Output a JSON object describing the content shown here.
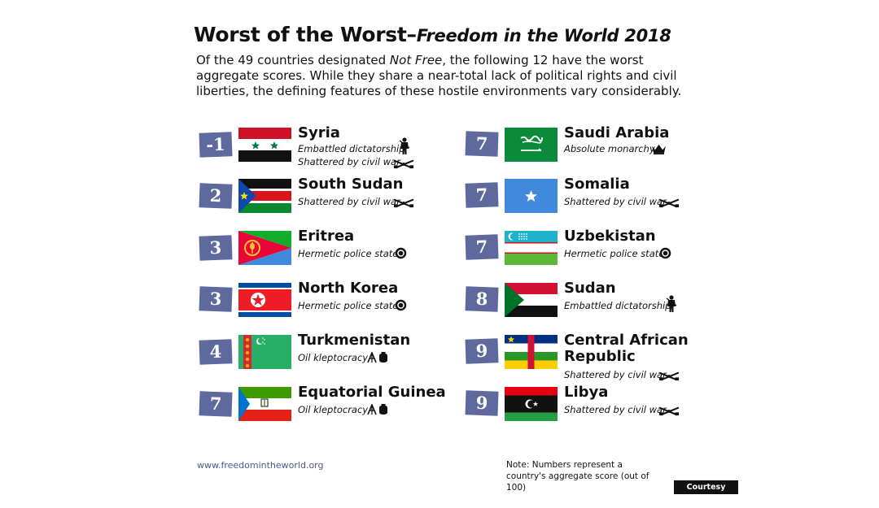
{
  "title": "Worst of the Worst",
  "title_dash": "–",
  "subtitle": "Freedom in the World 2018",
  "intro": {
    "p1": "Of the 49 countries designated ",
    "emph": "Not Free",
    "p2": ", the following 12 have the worst aggregate scores. While they share a near-total lack of political rights and civil liberties, the defining features of these hostile environments vary considerably."
  },
  "countries": [
    {
      "score": "-1",
      "name": "Syria",
      "descs": [
        "Embattled dictatorship",
        "Shattered by civil war"
      ],
      "icons": [
        "soldier-icon",
        "crossed-rifles-icon"
      ],
      "flag": "syria-flag-icon"
    },
    {
      "score": "2",
      "name": "South Sudan",
      "descs": [
        "Shattered by civil war"
      ],
      "icons": [
        "crossed-rifles-icon"
      ],
      "flag": "south-sudan-flag-icon"
    },
    {
      "score": "3",
      "name": "Eritrea",
      "descs": [
        "Hermetic police state"
      ],
      "icons": [
        "surveillance-eye-icon"
      ],
      "flag": "eritrea-flag-icon"
    },
    {
      "score": "3",
      "name": "North Korea",
      "descs": [
        "Hermetic police state"
      ],
      "icons": [
        "surveillance-eye-icon"
      ],
      "flag": "north-korea-flag-icon"
    },
    {
      "score": "4",
      "name": "Turkmenistan",
      "descs": [
        "Oil kleptocracy"
      ],
      "icons": [
        "oil-derrick-money-icon"
      ],
      "flag": "turkmenistan-flag-icon"
    },
    {
      "score": "7",
      "name": "Equatorial Guinea",
      "descs": [
        "Oil kleptocracy"
      ],
      "icons": [
        "oil-derrick-money-icon"
      ],
      "flag": "equatorial-guinea-flag-icon"
    },
    {
      "score": "7",
      "name": "Saudi Arabia",
      "descs": [
        "Absolute monarchy"
      ],
      "icons": [
        "crown-icon"
      ],
      "flag": "saudi-arabia-flag-icon"
    },
    {
      "score": "7",
      "name": "Somalia",
      "descs": [
        "Shattered by civil war"
      ],
      "icons": [
        "crossed-rifles-icon"
      ],
      "flag": "somalia-flag-icon"
    },
    {
      "score": "7",
      "name": "Uzbekistan",
      "descs": [
        "Hermetic police state"
      ],
      "icons": [
        "surveillance-eye-icon"
      ],
      "flag": "uzbekistan-flag-icon"
    },
    {
      "score": "8",
      "name": "Sudan",
      "descs": [
        "Embattled dictatorship"
      ],
      "icons": [
        "soldier-icon"
      ],
      "flag": "sudan-flag-icon"
    },
    {
      "score": "9",
      "name": "Central African Republic",
      "name_line1": "Central African",
      "name_line2": "Republic",
      "descs": [
        "Shattered by civil war"
      ],
      "icons": [
        "crossed-rifles-icon"
      ],
      "flag": "central-african-republic-flag-icon"
    },
    {
      "score": "9",
      "name": "Libya",
      "descs": [
        "Shattered by civil war"
      ],
      "icons": [
        "crossed-rifles-icon"
      ],
      "flag": "libya-flag-icon"
    }
  ],
  "footer": {
    "url": "www.freedomintheworld.org",
    "note": "Note: Numbers represent a country's aggregate score (out of 100)"
  },
  "credit": "Courtesy Photo",
  "colors": {
    "score_box": "#5e6a9e",
    "link": "#4b5a8a"
  }
}
